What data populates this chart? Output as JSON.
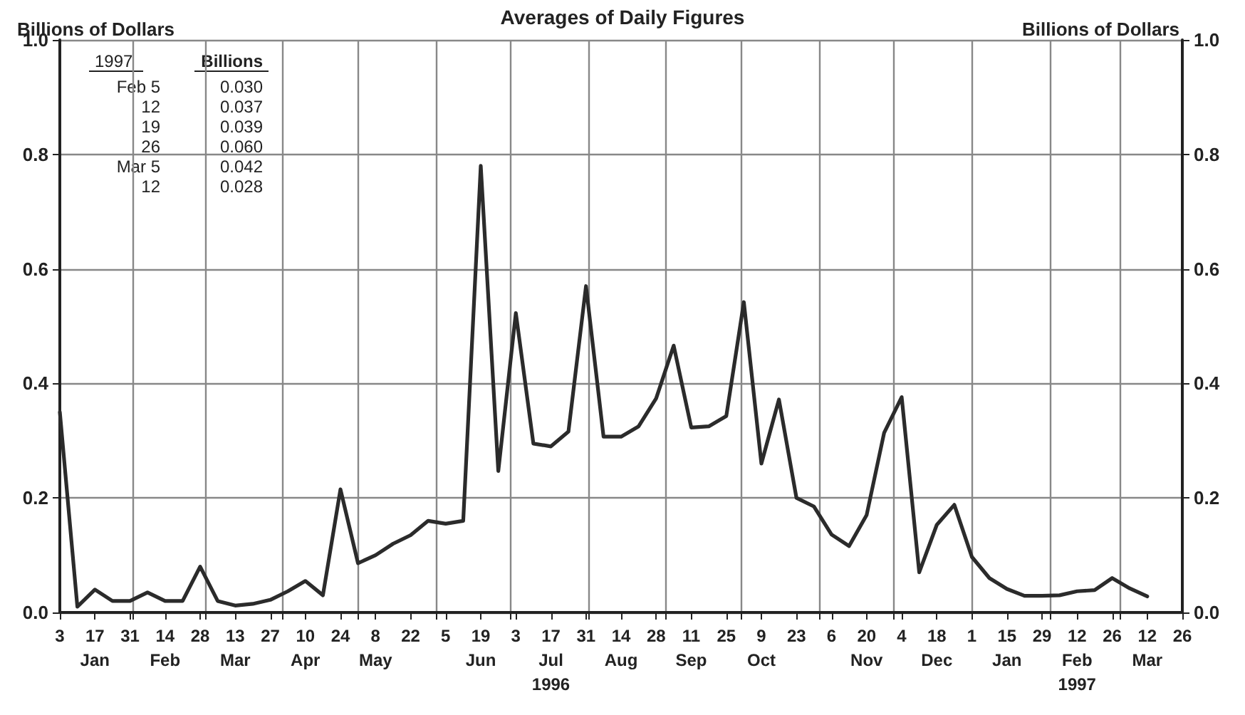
{
  "chart_data": {
    "type": "line",
    "title": "Averages of Daily Figures",
    "ylabel": "Billions of Dollars",
    "y2label": "Billions of Dollars",
    "annotations": [
      "1997\tBillions",
      "Feb 5\t0.030",
      "12\t0.037",
      "19\t0.039",
      "26\t0.060",
      "Mar 5\t0.042",
      "12\t0.028"
    ],
    "x": [
      "1996-01-03",
      "1996-01-10",
      "1996-01-17",
      "1996-01-24",
      "1996-01-31",
      "1996-02-07",
      "1996-02-14",
      "1996-02-21",
      "1996-02-28",
      "1996-03-06",
      "1996-03-13",
      "1996-03-20",
      "1996-03-27",
      "1996-04-03",
      "1996-04-10",
      "1996-04-17",
      "1996-04-24",
      "1996-05-01",
      "1996-05-08",
      "1996-05-15",
      "1996-05-22",
      "1996-05-29",
      "1996-06-05",
      "1996-06-12",
      "1996-06-19",
      "1996-06-26",
      "1996-07-03",
      "1996-07-10",
      "1996-07-17",
      "1996-07-24",
      "1996-07-31",
      "1996-08-07",
      "1996-08-14",
      "1996-08-21",
      "1996-08-28",
      "1996-09-04",
      "1996-09-11",
      "1996-09-18",
      "1996-09-25",
      "1996-10-02",
      "1996-10-09",
      "1996-10-16",
      "1996-10-23",
      "1996-10-30",
      "1996-11-06",
      "1996-11-13",
      "1996-11-20",
      "1996-11-27",
      "1996-12-04",
      "1996-12-11",
      "1996-12-18",
      "1996-12-25",
      "1997-01-01",
      "1997-01-08",
      "1997-01-15",
      "1997-01-22",
      "1997-01-29",
      "1997-02-05",
      "1997-02-12",
      "1997-02-19",
      "1997-02-26",
      "1997-03-05",
      "1997-03-12"
    ],
    "series": [
      {
        "color": "#2b2b2b",
        "values": [
          0.35,
          0.01,
          0.04,
          0.02,
          0.02,
          0.035,
          0.02,
          0.02,
          0.08,
          0.02,
          0.012,
          0.015,
          0.022,
          0.037,
          0.055,
          0.03,
          0.215,
          0.086,
          0.1,
          0.12,
          0.135,
          0.16,
          0.155,
          0.16,
          0.78,
          0.247,
          0.523,
          0.295,
          0.29,
          0.316,
          0.57,
          0.307,
          0.307,
          0.325,
          0.374,
          0.466,
          0.323,
          0.325,
          0.343,
          0.542,
          0.26,
          0.372,
          0.2,
          0.185,
          0.136,
          0.116,
          0.17,
          0.314,
          0.376,
          0.07,
          0.153,
          0.188,
          0.097,
          0.06,
          0.041,
          0.029,
          0.029,
          0.03,
          0.037,
          0.039,
          0.06,
          0.042,
          0.028
        ]
      }
    ],
    "xlim": [
      "1996-01-03",
      "1997-03-26"
    ],
    "xticks": [
      {
        "value": "1996-01-03",
        "label": "3"
      },
      {
        "value": "1996-01-17",
        "label": "17\nJan"
      },
      {
        "value": "1996-01-31",
        "label": "31"
      },
      {
        "value": "1996-02-14",
        "label": "14\nFeb"
      },
      {
        "value": "1996-02-28",
        "label": "28"
      },
      {
        "value": "1996-03-13",
        "label": "13\nMar"
      },
      {
        "value": "1996-03-27",
        "label": "27"
      },
      {
        "value": "1996-04-10",
        "label": "10\nApr"
      },
      {
        "value": "1996-04-24",
        "label": "24"
      },
      {
        "value": "1996-05-08",
        "label": "8\nMay"
      },
      {
        "value": "1996-05-22",
        "label": "22"
      },
      {
        "value": "1996-06-05",
        "label": "5"
      },
      {
        "value": "1996-06-19",
        "label": "19\nJun"
      },
      {
        "value": "1996-07-03",
        "label": "3"
      },
      {
        "value": "1996-07-17",
        "label": "17\nJul\n1996"
      },
      {
        "value": "1996-07-31",
        "label": "31"
      },
      {
        "value": "1996-08-14",
        "label": "14\nAug"
      },
      {
        "value": "1996-08-28",
        "label": "28"
      },
      {
        "value": "1996-09-11",
        "label": "11\nSep"
      },
      {
        "value": "1996-09-25",
        "label": "25"
      },
      {
        "value": "1996-10-09",
        "label": "9\nOct"
      },
      {
        "value": "1996-10-23",
        "label": "23"
      },
      {
        "value": "1996-11-06",
        "label": "6"
      },
      {
        "value": "1996-11-20",
        "label": "20\nNov"
      },
      {
        "value": "1996-12-04",
        "label": "4"
      },
      {
        "value": "1996-12-18",
        "label": "18\nDec"
      },
      {
        "value": "1997-01-01",
        "label": "1"
      },
      {
        "value": "1997-01-15",
        "label": "15\nJan"
      },
      {
        "value": "1997-01-29",
        "label": "29"
      },
      {
        "value": "1997-02-12",
        "label": "12\nFeb\n1997"
      },
      {
        "value": "1997-02-26",
        "label": "26"
      },
      {
        "value": "1997-03-12",
        "label": "12\nMar"
      },
      {
        "value": "1997-03-26",
        "label": "26"
      },
      {
        "value": "1996-02-01",
        "label": null
      },
      {
        "value": "1996-03-01",
        "label": null
      },
      {
        "value": "1996-04-01",
        "label": null
      },
      {
        "value": "1996-05-01",
        "label": null
      },
      {
        "value": "1996-06-01",
        "label": null
      },
      {
        "value": "1996-07-01",
        "label": null
      },
      {
        "value": "1996-08-01",
        "label": null
      },
      {
        "value": "1996-09-01",
        "label": null
      },
      {
        "value": "1996-10-01",
        "label": null
      },
      {
        "value": "1996-11-01",
        "label": null
      },
      {
        "value": "1996-12-01",
        "label": null
      },
      {
        "value": "1997-01-01",
        "label": null
      },
      {
        "value": "1997-02-01",
        "label": null
      },
      {
        "value": "1997-03-01",
        "label": null
      }
    ],
    "ylim": [
      0,
      1
    ],
    "yticks": [
      {
        "value": 0,
        "label": "0.0"
      },
      0.2,
      0.4,
      0.6,
      0.8,
      {
        "value": 1,
        "label": "1.0"
      }
    ],
    "y2lim": [
      0,
      1
    ],
    "y2ticks": [
      {
        "value": 0,
        "label": "0.0"
      },
      0.2,
      0.4,
      0.6,
      0.8,
      {
        "value": 1,
        "label": "1.0"
      }
    ],
    "grid": true,
    "marker": "none",
    "line_style": "solid"
  }
}
